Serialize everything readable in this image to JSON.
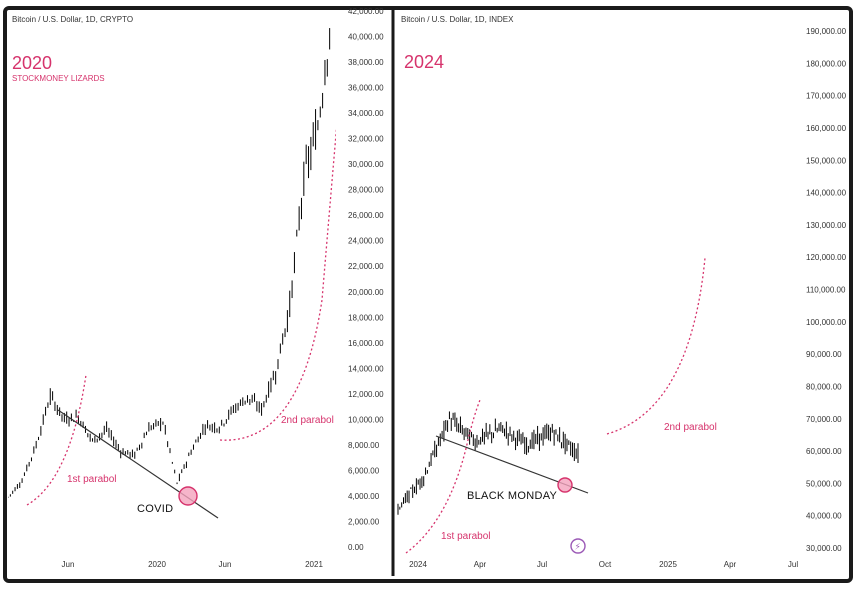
{
  "colors": {
    "accent": "#d6336c",
    "candle": "#000000",
    "trendline": "#333333",
    "circle_fill": "#f4a3bd"
  },
  "chart_data": [
    {
      "type": "line",
      "header": "Bitcoin / U.S. Dollar, 1D, CRYPTO",
      "year_label": "2020",
      "subtitle": "STOCKMONEY LIZARDS",
      "x_ticks": [
        "Jun",
        "2020",
        "Jun",
        "2021"
      ],
      "y_ticks": [
        "0.00",
        "2,000.00",
        "4,000.00",
        "6,000.00",
        "8,000.00",
        "10,000.00",
        "12,000.00",
        "14,000.00",
        "16,000.00",
        "18,000.00",
        "20,000.00",
        "22,000.00",
        "24,000.00",
        "26,000.00",
        "28,000.00",
        "30,000.00",
        "32,000.00",
        "34,000.00",
        "36,000.00",
        "38,000.00",
        "40,000.00",
        "42,000.00"
      ],
      "ylim": [
        0,
        42000
      ],
      "x": [
        "2019-03",
        "2019-04",
        "2019-05",
        "2019-06",
        "2019-07",
        "2019-08",
        "2019-09",
        "2019-10",
        "2019-11",
        "2019-12",
        "2020-01",
        "2020-02",
        "2020-03",
        "2020-04",
        "2020-05",
        "2020-06",
        "2020-07",
        "2020-08",
        "2020-09",
        "2020-10",
        "2020-11",
        "2020-12",
        "2021-01",
        "2021-02"
      ],
      "values": [
        3900,
        5200,
        8000,
        11800,
        10000,
        10200,
        8300,
        9200,
        7500,
        7200,
        9300,
        9800,
        5000,
        7500,
        9500,
        9400,
        10800,
        11700,
        10800,
        13700,
        18800,
        28900,
        33000,
        42000
      ],
      "annotations": [
        "1st parabol",
        "2nd parabol",
        "COVID"
      ]
    },
    {
      "type": "line",
      "header": "Bitcoin / U.S. Dollar, 1D, INDEX",
      "year_label": "2024",
      "x_ticks": [
        "2024",
        "Apr",
        "Jul",
        "Oct",
        "2025",
        "Apr",
        "Jul"
      ],
      "y_ticks": [
        "30,000.00",
        "40,000.00",
        "50,000.00",
        "60,000.00",
        "70,000.00",
        "80,000.00",
        "90,000.00",
        "100,000.00",
        "110,000.00",
        "120,000.00",
        "130,000.00",
        "140,000.00",
        "150,000.00",
        "160,000.00",
        "170,000.00",
        "180,000.00",
        "190,000.00"
      ],
      "ylim": [
        30000,
        190000
      ],
      "x": [
        "2024-01",
        "2024-02",
        "2024-03",
        "2024-04",
        "2024-05",
        "2024-06",
        "2024-07",
        "2024-08"
      ],
      "values": [
        42000,
        52000,
        70000,
        63000,
        67000,
        62000,
        66000,
        59000
      ],
      "annotations": [
        "1st parabol",
        "2nd parabol",
        "BLACK MONDAY"
      ]
    }
  ]
}
